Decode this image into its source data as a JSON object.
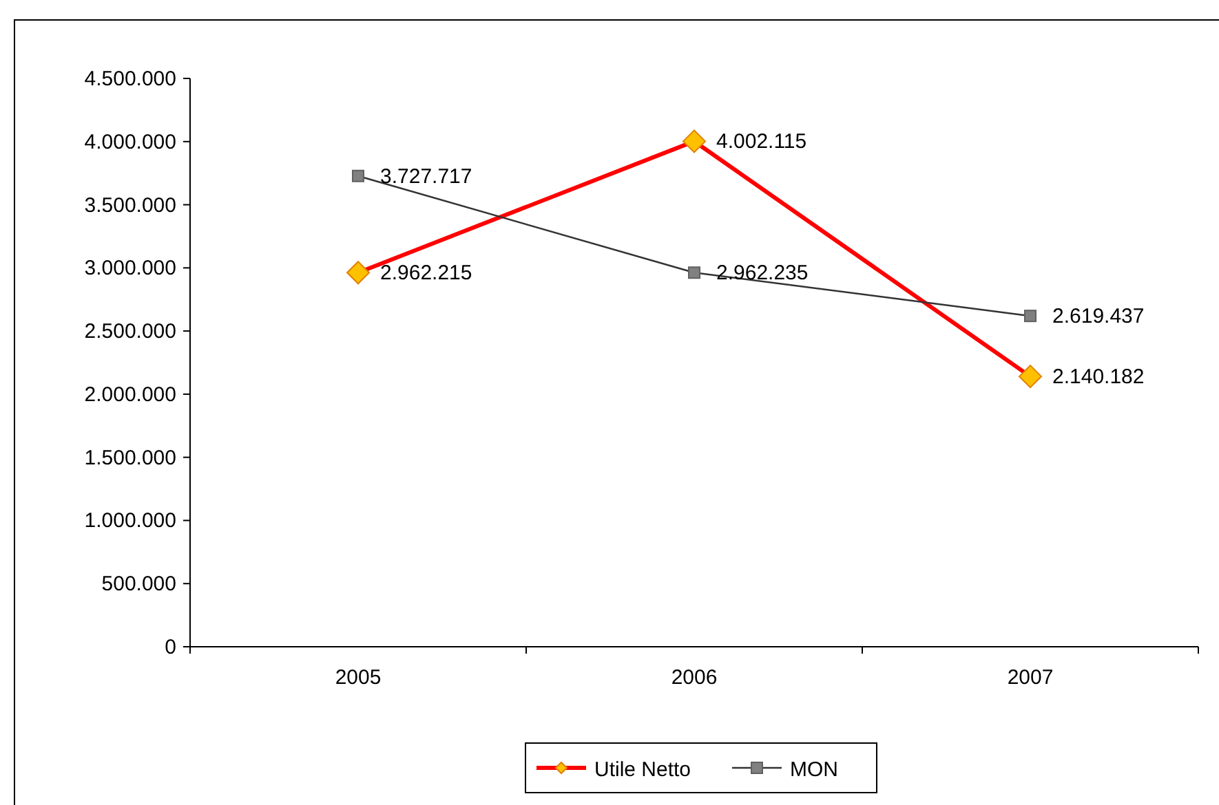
{
  "chart_data": {
    "type": "line",
    "categories": [
      "2005",
      "2006",
      "2007"
    ],
    "series": [
      {
        "name": "Utile Netto",
        "color": "#ff0000",
        "marker": "diamond",
        "values": [
          2962215,
          4002115,
          2140182
        ],
        "value_labels": [
          "2.962.215",
          "4.002.115",
          "2.140.182"
        ]
      },
      {
        "name": "MON",
        "color": "#333333",
        "marker": "square",
        "values": [
          3727717,
          2962235,
          2619437
        ],
        "value_labels": [
          "3.727.717",
          "2.962.235",
          "2.619.437"
        ]
      }
    ],
    "ylim": [
      0,
      4500000
    ],
    "yticks": [
      {
        "value": 0,
        "label": "0"
      },
      {
        "value": 500000,
        "label": "500.000"
      },
      {
        "value": 1000000,
        "label": "1.000.000"
      },
      {
        "value": 1500000,
        "label": "1.500.000"
      },
      {
        "value": 2000000,
        "label": "2.000.000"
      },
      {
        "value": 2500000,
        "label": "2.500.000"
      },
      {
        "value": 3000000,
        "label": "3.000.000"
      },
      {
        "value": 3500000,
        "label": "3.500.000"
      },
      {
        "value": 4000000,
        "label": "4.000.000"
      },
      {
        "value": 4500000,
        "label": "4.500.000"
      }
    ],
    "grid": false,
    "legend": "bottom"
  }
}
